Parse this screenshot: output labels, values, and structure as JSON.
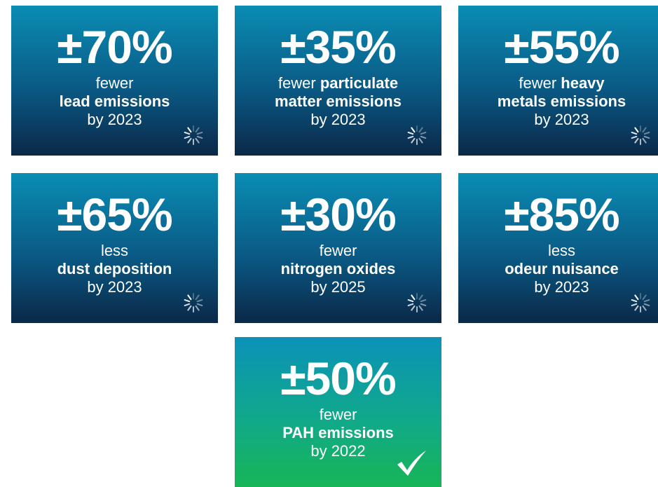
{
  "tiles": [
    {
      "figure": "±70%",
      "status": "pending",
      "lines": [
        {
          "regular": "fewer"
        },
        {
          "bold": "lead emissions"
        },
        {
          "regular": "by 2023"
        }
      ]
    },
    {
      "figure": "±35%",
      "status": "pending",
      "lines": [
        {
          "regular": "fewer",
          "bold": "particulate"
        },
        {
          "bold": "matter emissions"
        },
        {
          "regular": "by 2023"
        }
      ]
    },
    {
      "figure": "±55%",
      "status": "pending",
      "lines": [
        {
          "regular": "fewer",
          "bold": "heavy"
        },
        {
          "bold": "metals emissions"
        },
        {
          "regular": "by 2023"
        }
      ]
    },
    {
      "figure": "±65%",
      "status": "pending",
      "lines": [
        {
          "regular": "less"
        },
        {
          "bold": "dust deposition"
        },
        {
          "regular": "by 2023"
        }
      ]
    },
    {
      "figure": "±30%",
      "status": "pending",
      "lines": [
        {
          "regular": "fewer"
        },
        {
          "bold": "nitrogen oxides"
        },
        {
          "regular": "by 2025"
        }
      ]
    },
    {
      "figure": "±85%",
      "status": "pending",
      "lines": [
        {
          "regular": "less"
        },
        {
          "bold": "odeur nuisance"
        },
        {
          "regular": "by 2023"
        }
      ]
    },
    {
      "figure": "±50%",
      "status": "done",
      "lines": [
        {
          "regular": "fewer"
        },
        {
          "bold": "PAH emissions"
        },
        {
          "regular": "by 2022"
        }
      ]
    }
  ]
}
